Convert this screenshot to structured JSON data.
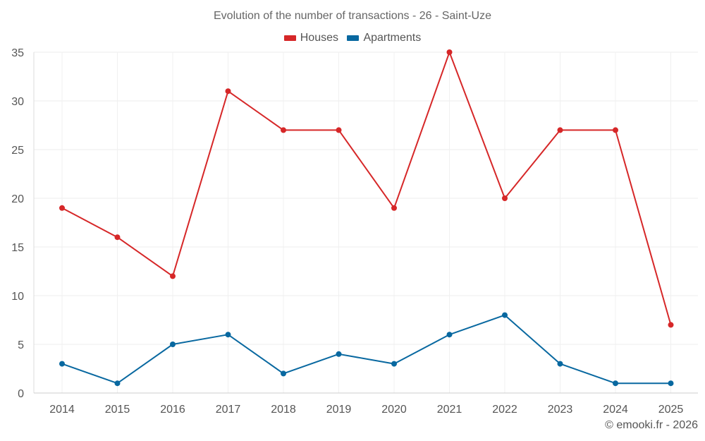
{
  "chart_data": {
    "type": "line",
    "title": "Evolution of the number of transactions - 26 - Saint-Uze",
    "xlabel": "",
    "ylabel": "",
    "categories": [
      "2014",
      "2015",
      "2016",
      "2017",
      "2018",
      "2019",
      "2020",
      "2021",
      "2022",
      "2023",
      "2024",
      "2025"
    ],
    "series": [
      {
        "name": "Houses",
        "color": "#d62728",
        "values": [
          19,
          16,
          12,
          31,
          27,
          27,
          19,
          35,
          20,
          27,
          27,
          7
        ]
      },
      {
        "name": "Apartments",
        "color": "#0868a0",
        "values": [
          3,
          1,
          5,
          6,
          2,
          4,
          3,
          6,
          8,
          3,
          1,
          1
        ]
      }
    ],
    "ylim": [
      0,
      35
    ],
    "yticks": [
      0,
      5,
      10,
      15,
      20,
      25,
      30,
      35
    ],
    "grid": true,
    "legend_position": "top-center"
  },
  "footer": {
    "credit": "© emooki.fr - 2026"
  }
}
